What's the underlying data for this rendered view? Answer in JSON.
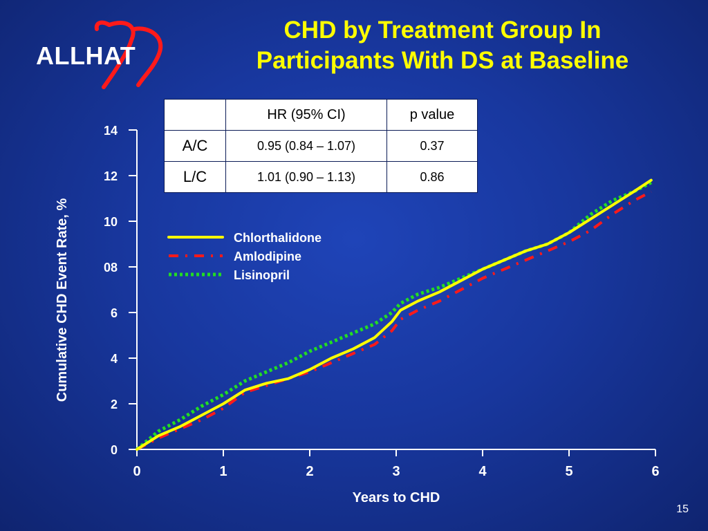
{
  "slide": {
    "logo_text": "ALLHAT",
    "title_line1": "CHD by Treatment Group In",
    "title_line2": "Participants With DS at Baseline",
    "page_number": "15"
  },
  "table": {
    "header": [
      "",
      "HR (95% CI)",
      "p value"
    ],
    "rows": [
      [
        "A/C",
        "0.95 (0.84 – 1.07)",
        "0.37"
      ],
      [
        "L/C",
        "1.01 (0.90 – 1.13)",
        "0.86"
      ]
    ]
  },
  "colors": {
    "title": "#ffff00",
    "chlorthalidone": "#ffff00",
    "amlodipine": "#ff1a1a",
    "lisinopril": "#22dd22"
  },
  "chart_data": {
    "type": "line",
    "xlabel": "Years to CHD",
    "ylabel": "Cumulative CHD Event Rate, %",
    "xlim": [
      0,
      6
    ],
    "ylim": [
      0,
      14
    ],
    "x_ticks": [
      "0",
      "1",
      "2",
      "3",
      "4",
      "5",
      "6"
    ],
    "y_ticks": [
      "0",
      "2",
      "4",
      "6",
      "08",
      "10",
      "12",
      "14"
    ],
    "legend_position": "middle-left",
    "series": [
      {
        "name": "Chlorthalidone",
        "style": "solid",
        "x": [
          0,
          0.25,
          0.5,
          0.75,
          1.0,
          1.25,
          1.5,
          1.75,
          2.0,
          2.25,
          2.5,
          2.75,
          2.95,
          3.05,
          3.25,
          3.5,
          3.75,
          4.0,
          4.25,
          4.5,
          4.75,
          5.0,
          5.25,
          5.5,
          5.75,
          5.95
        ],
        "values": [
          0,
          0.6,
          1.0,
          1.5,
          2.0,
          2.6,
          2.9,
          3.1,
          3.5,
          4.0,
          4.4,
          4.9,
          5.6,
          6.1,
          6.5,
          6.9,
          7.4,
          7.9,
          8.3,
          8.7,
          9.0,
          9.5,
          10.1,
          10.7,
          11.3,
          11.8
        ]
      },
      {
        "name": "Amlodipine",
        "style": "dash-dot",
        "x": [
          0,
          0.25,
          0.5,
          0.75,
          1.0,
          1.25,
          1.5,
          1.75,
          2.0,
          2.25,
          2.5,
          2.75,
          2.95,
          3.05,
          3.25,
          3.5,
          3.75,
          4.0,
          4.25,
          4.5,
          4.75,
          5.0,
          5.25,
          5.5,
          5.75,
          5.95
        ],
        "values": [
          0,
          0.5,
          0.9,
          1.3,
          1.8,
          2.5,
          2.8,
          3.1,
          3.4,
          3.8,
          4.2,
          4.6,
          5.2,
          5.7,
          6.1,
          6.5,
          7.0,
          7.5,
          7.9,
          8.3,
          8.7,
          9.1,
          9.6,
          10.3,
          10.9,
          11.3
        ]
      },
      {
        "name": "Lisinopril",
        "style": "dotted",
        "x": [
          0,
          0.25,
          0.5,
          0.75,
          1.0,
          1.25,
          1.5,
          1.75,
          2.0,
          2.25,
          2.5,
          2.75,
          2.95,
          3.05,
          3.25,
          3.5,
          3.75,
          4.0,
          4.25,
          4.5,
          4.75,
          5.0,
          5.25,
          5.5,
          5.75,
          5.95
        ],
        "values": [
          0,
          0.8,
          1.3,
          1.9,
          2.4,
          3.0,
          3.4,
          3.8,
          4.3,
          4.7,
          5.1,
          5.5,
          6.0,
          6.4,
          6.8,
          7.1,
          7.5,
          7.9,
          8.3,
          8.7,
          9.0,
          9.5,
          10.3,
          10.9,
          11.3,
          11.7
        ]
      }
    ]
  }
}
